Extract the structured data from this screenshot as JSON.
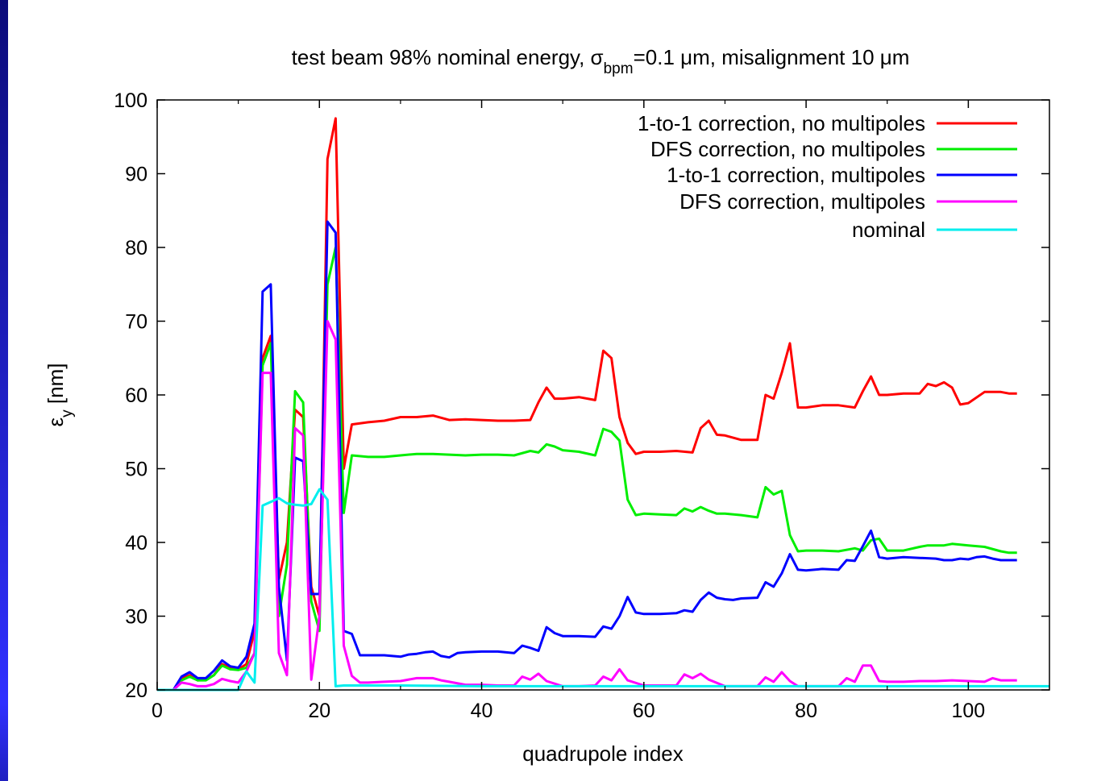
{
  "chart_data": {
    "type": "line",
    "title_parts": {
      "pre": "test beam 98% nominal energy, σ",
      "sub": "bpm",
      "post": "=0.1 μm, misalignment 10 μm"
    },
    "xlabel": "quadrupole index",
    "ylabel_parts": {
      "pre": "ε",
      "sub": "y",
      "post": " [nm]"
    },
    "xlim": [
      0,
      110
    ],
    "ylim": [
      20,
      100
    ],
    "x_ticks": [
      "0",
      "20",
      "40",
      "60",
      "80",
      "100"
    ],
    "y_ticks": [
      "20",
      "30",
      "40",
      "50",
      "60",
      "70",
      "80",
      "90",
      "100"
    ],
    "grid": false,
    "legend_position": "top-right",
    "series": [
      {
        "name": "1-to-1 correction, no multipoles",
        "color": "#ff0000",
        "x": [
          0,
          2,
          3,
          4,
          5,
          6,
          7,
          8,
          9,
          10,
          11,
          12,
          13,
          14,
          15,
          16,
          17,
          18,
          19,
          20,
          21,
          22,
          23,
          24,
          26,
          28,
          30,
          32,
          34,
          36,
          38,
          40,
          42,
          44,
          46,
          47,
          48,
          49,
          50,
          52,
          54,
          55,
          56,
          57,
          58,
          59,
          60,
          62,
          64,
          66,
          67,
          68,
          69,
          70,
          72,
          74,
          75,
          76,
          77,
          78,
          79,
          80,
          82,
          84,
          86,
          87,
          88,
          89,
          90,
          92,
          94,
          95,
          96,
          97,
          98,
          99,
          100,
          102,
          104,
          105,
          106
        ],
        "values": [
          20,
          20,
          21.5,
          22,
          21.3,
          21.4,
          22,
          23.5,
          23,
          22.8,
          23.5,
          28,
          65,
          68,
          35,
          40,
          58,
          57,
          34,
          30,
          92,
          97.5,
          50,
          56,
          56.3,
          56.5,
          57,
          57,
          57.2,
          56.6,
          56.7,
          56.6,
          56.5,
          56.5,
          56.6,
          59,
          61,
          59.5,
          59.5,
          59.7,
          59.3,
          66,
          65,
          57,
          53.5,
          52,
          52.3,
          52.3,
          52.4,
          52.2,
          55.5,
          56.5,
          54.6,
          54.5,
          53.9,
          53.9,
          60,
          59.5,
          63,
          67,
          58.3,
          58.3,
          58.6,
          58.6,
          58.3,
          60.5,
          62.5,
          60,
          60,
          60.2,
          60.2,
          61.5,
          61.2,
          61.7,
          61,
          58.7,
          58.9,
          60.4,
          60.4,
          60.2,
          60.2
        ]
      },
      {
        "name": "DFS correction, no multipoles",
        "color": "#00ee00",
        "x": [
          0,
          2,
          3,
          4,
          5,
          6,
          7,
          8,
          9,
          10,
          11,
          12,
          13,
          14,
          15,
          16,
          17,
          18,
          19,
          20,
          21,
          22,
          23,
          24,
          26,
          28,
          30,
          32,
          34,
          36,
          38,
          40,
          42,
          44,
          46,
          47,
          48,
          49,
          50,
          52,
          54,
          55,
          56,
          57,
          58,
          59,
          60,
          62,
          64,
          65,
          66,
          67,
          68,
          69,
          70,
          72,
          74,
          75,
          76,
          77,
          78,
          79,
          80,
          82,
          84,
          86,
          87,
          88,
          89,
          90,
          92,
          94,
          95,
          96,
          97,
          98,
          99,
          100,
          102,
          104,
          105,
          106
        ],
        "values": [
          20,
          20,
          21.3,
          21.8,
          21.3,
          21.3,
          22,
          23.3,
          22.8,
          22.7,
          23,
          25,
          64,
          67,
          30,
          37,
          60.5,
          59,
          32,
          28,
          75,
          80,
          44,
          51.8,
          51.6,
          51.6,
          51.8,
          52,
          52,
          51.9,
          51.8,
          51.9,
          51.9,
          51.8,
          52.4,
          52.2,
          53.3,
          53,
          52.5,
          52.3,
          51.8,
          55.4,
          55,
          53.8,
          45.8,
          43.7,
          43.9,
          43.8,
          43.7,
          44.6,
          44.2,
          44.8,
          44.3,
          43.9,
          43.9,
          43.7,
          43.4,
          47.5,
          46.5,
          47,
          41,
          38.8,
          38.9,
          38.9,
          38.8,
          39.2,
          38.9,
          40.3,
          40.5,
          38.9,
          38.9,
          39.4,
          39.6,
          39.6,
          39.6,
          39.8,
          39.7,
          39.6,
          39.4,
          38.8,
          38.6,
          38.6
        ]
      },
      {
        "name": "1-to-1 correction, multipoles",
        "color": "#0000ff",
        "x": [
          0,
          2,
          3,
          4,
          5,
          6,
          7,
          8,
          9,
          10,
          11,
          12,
          13,
          14,
          15,
          16,
          17,
          18,
          19,
          20,
          21,
          22,
          23,
          24,
          25,
          26,
          28,
          30,
          31,
          32,
          33,
          34,
          35,
          36,
          37,
          38,
          40,
          42,
          44,
          45,
          46,
          47,
          48,
          49,
          50,
          52,
          54,
          55,
          56,
          57,
          58,
          59,
          60,
          62,
          64,
          65,
          66,
          67,
          68,
          69,
          70,
          71,
          72,
          74,
          75,
          76,
          77,
          78,
          79,
          80,
          82,
          84,
          85,
          86,
          87,
          88,
          89,
          90,
          92,
          94,
          96,
          97,
          98,
          99,
          100,
          101,
          102,
          103,
          104,
          105,
          106
        ],
        "values": [
          20,
          20,
          21.8,
          22.4,
          21.6,
          21.6,
          22.6,
          24,
          23.2,
          23,
          24.5,
          29,
          74,
          75,
          34,
          24,
          51.5,
          51,
          33,
          33,
          83.5,
          82,
          28,
          27.6,
          24.7,
          24.7,
          24.7,
          24.5,
          24.8,
          24.9,
          25.1,
          25.2,
          24.6,
          24.4,
          25,
          25.1,
          25.2,
          25.2,
          25,
          26,
          25.7,
          25.3,
          28.5,
          27.7,
          27.3,
          27.3,
          27.2,
          28.6,
          28.3,
          30,
          32.6,
          30.5,
          30.3,
          30.3,
          30.4,
          30.8,
          30.6,
          32.2,
          33.2,
          32.5,
          32.3,
          32.2,
          32.4,
          32.5,
          34.6,
          34,
          35.8,
          38.4,
          36.3,
          36.2,
          36.4,
          36.3,
          37.6,
          37.5,
          39.5,
          41.6,
          38,
          37.8,
          38,
          37.9,
          37.8,
          37.6,
          37.6,
          37.8,
          37.7,
          38,
          38.1,
          37.8,
          37.6,
          37.6,
          37.6
        ]
      },
      {
        "name": "DFS correction, multipoles",
        "color": "#ff00ff",
        "x": [
          0,
          2,
          3,
          4,
          5,
          6,
          7,
          8,
          9,
          10,
          11,
          12,
          13,
          14,
          15,
          16,
          17,
          18,
          19,
          20,
          21,
          22,
          23,
          24,
          25,
          26,
          28,
          30,
          32,
          34,
          35,
          36,
          38,
          40,
          42,
          44,
          45,
          46,
          47,
          48,
          50,
          52,
          54,
          55,
          56,
          57,
          58,
          60,
          62,
          64,
          65,
          66,
          67,
          68,
          70,
          72,
          74,
          75,
          76,
          77,
          78,
          79,
          80,
          84,
          85,
          86,
          87,
          88,
          89,
          90,
          92,
          94,
          96,
          98,
          100,
          102,
          103,
          104,
          105,
          106
        ],
        "values": [
          20,
          20,
          21,
          20.8,
          20.5,
          20.5,
          20.8,
          21.5,
          21.2,
          21,
          22.5,
          25,
          63,
          63,
          25,
          22,
          55.5,
          54.5,
          21.4,
          30,
          70,
          67.5,
          26,
          21.9,
          21,
          21,
          21.1,
          21.2,
          21.6,
          21.6,
          21.3,
          21.1,
          20.7,
          20.7,
          20.6,
          20.6,
          21.8,
          21.4,
          22.2,
          21.2,
          20.5,
          20.5,
          20.6,
          21.8,
          21.3,
          22.8,
          21.3,
          20.6,
          20.6,
          20.6,
          22.1,
          21.6,
          22.2,
          21.4,
          20.5,
          20.5,
          20.5,
          21.7,
          21.1,
          22.4,
          21.2,
          20.5,
          20.5,
          20.5,
          21.6,
          21.1,
          23.3,
          23.3,
          21.2,
          21.1,
          21.1,
          21.2,
          21.2,
          21.3,
          21.2,
          21.1,
          21.6,
          21.3,
          21.3,
          21.3
        ]
      },
      {
        "name": "nominal",
        "color": "#00eeee",
        "x": [
          0,
          10,
          11,
          12,
          13,
          14,
          15,
          16,
          17,
          18,
          19,
          20,
          21,
          22,
          23,
          30,
          40,
          50,
          60,
          70,
          80,
          90,
          100,
          110
        ],
        "values": [
          20,
          20,
          22.5,
          21,
          45,
          45.5,
          46,
          45.3,
          45.1,
          45,
          45.2,
          47.2,
          45.8,
          20.5,
          20.6,
          20.6,
          20.5,
          20.5,
          20.5,
          20.5,
          20.5,
          20.5,
          20.5,
          20.5
        ]
      }
    ]
  }
}
